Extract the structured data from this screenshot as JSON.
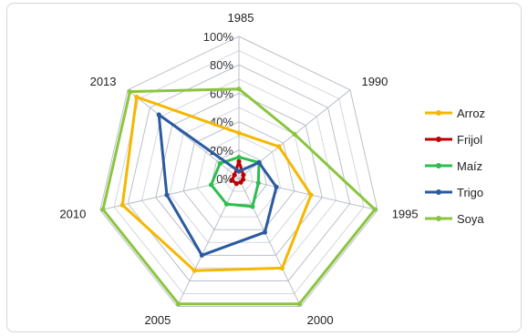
{
  "chart_data": {
    "type": "radar",
    "categories": [
      "1985",
      "1990",
      "1995",
      "2000",
      "2005",
      "2010",
      "2013"
    ],
    "r_ticks": [
      "0%",
      "20%",
      "40%",
      "60%",
      "80%",
      "100%"
    ],
    "rlim": [
      0,
      100
    ],
    "legend_position": "right",
    "grid": true,
    "series": [
      {
        "name": "Arroz",
        "color": "#F5B700",
        "values": [
          32,
          36,
          52,
          70,
          72,
          84,
          92
        ]
      },
      {
        "name": "Frijol",
        "color": "#C00000",
        "values": [
          12,
          4,
          3,
          3,
          4,
          5,
          4
        ]
      },
      {
        "name": "Maíz",
        "color": "#2DBE4E",
        "values": [
          15,
          18,
          14,
          22,
          20,
          20,
          17
        ]
      },
      {
        "name": "Trigo",
        "color": "#2A5AA0",
        "values": [
          5,
          18,
          27,
          42,
          60,
          52,
          72
        ]
      },
      {
        "name": "Soya",
        "color": "#8BC53F",
        "values": [
          63,
          50,
          98,
          98,
          98,
          98,
          98
        ]
      }
    ]
  }
}
